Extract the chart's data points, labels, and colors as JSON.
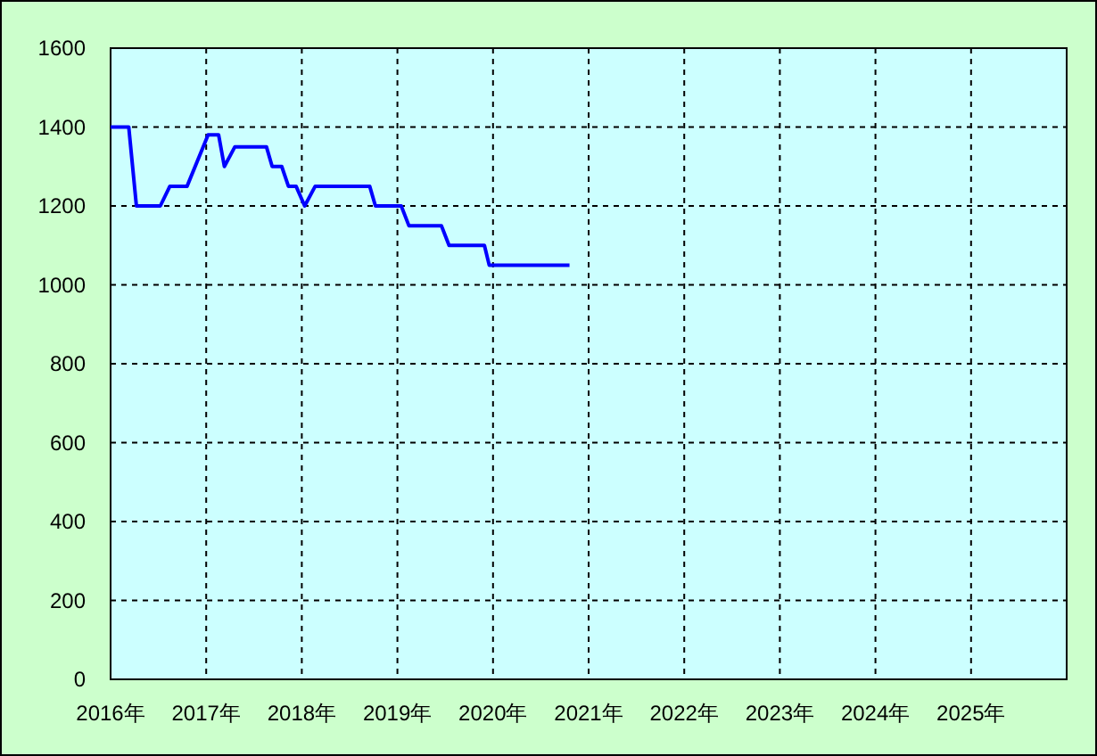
{
  "chart_data": {
    "type": "line",
    "x": [
      2016.0,
      2016.19,
      2016.27,
      2016.52,
      2016.62,
      2016.8,
      2017.02,
      2017.13,
      2017.19,
      2017.3,
      2017.63,
      2017.69,
      2017.79,
      2017.86,
      2017.94,
      2018.03,
      2018.14,
      2018.71,
      2018.77,
      2019.04,
      2019.12,
      2019.46,
      2019.54,
      2019.91,
      2019.96,
      2020.8
    ],
    "series": [
      {
        "color": "#0000ff",
        "values": [
          1400,
          1400,
          1200,
          1200,
          1250,
          1250,
          1380,
          1380,
          1300,
          1350,
          1350,
          1300,
          1300,
          1250,
          1250,
          1200,
          1250,
          1250,
          1200,
          1200,
          1150,
          1150,
          1100,
          1100,
          1050,
          1050
        ]
      }
    ],
    "xlim": [
      2016,
      2026
    ],
    "xticks": [
      {
        "value": 2016,
        "label": "2016年"
      },
      {
        "value": 2017,
        "label": "2017年"
      },
      {
        "value": 2018,
        "label": "2018年"
      },
      {
        "value": 2019,
        "label": "2019年"
      },
      {
        "value": 2020,
        "label": "2020年"
      },
      {
        "value": 2021,
        "label": "2021年"
      },
      {
        "value": 2022,
        "label": "2022年"
      },
      {
        "value": 2023,
        "label": "2023年"
      },
      {
        "value": 2024,
        "label": "2024年"
      },
      {
        "value": 2025,
        "label": "2025年"
      }
    ],
    "ylim": [
      0,
      1600
    ],
    "yticks": [
      0,
      200,
      400,
      600,
      800,
      1000,
      1200,
      1400,
      1600
    ],
    "grid": true,
    "marker": "none",
    "line_style": "solid"
  }
}
